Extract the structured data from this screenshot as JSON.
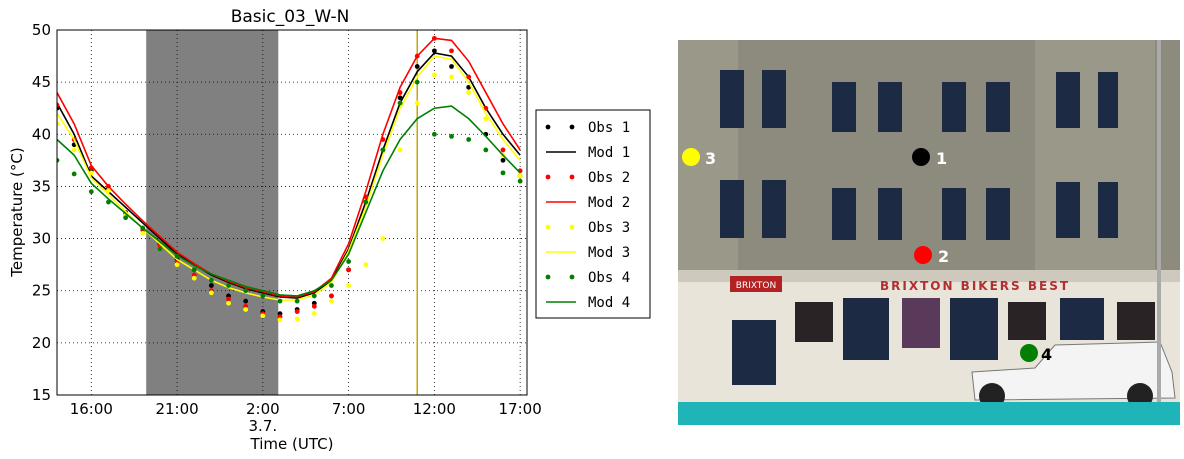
{
  "chart_data": {
    "type": "line",
    "title": "Basic_03_W-N",
    "x_label": "Time (UTC)",
    "y_label": "Temperature (°C)",
    "date_label": "3.7.",
    "xlim": [
      14,
      41.4
    ],
    "ylim": [
      15,
      50
    ],
    "xticks": [
      {
        "value": 16,
        "label": "16:00"
      },
      {
        "value": 21,
        "label": "21:00"
      },
      {
        "value": 26,
        "label": "2:00"
      },
      {
        "value": 31,
        "label": "7:00"
      },
      {
        "value": 36,
        "label": "12:00"
      },
      {
        "value": 41,
        "label": "17:00"
      }
    ],
    "yticks": [
      15,
      20,
      25,
      30,
      35,
      40,
      45,
      50
    ],
    "grid": true,
    "shaded_span": [
      19.2,
      26.9
    ],
    "shade_color": "#808080",
    "vline": 35,
    "vline_color": "#c8a800",
    "x": [
      14,
      15,
      16,
      17,
      18,
      19,
      20,
      21,
      22,
      23,
      24,
      25,
      26,
      27,
      28,
      29,
      30,
      31,
      32,
      33,
      34,
      35,
      36,
      37,
      38,
      39,
      40,
      41
    ],
    "series": [
      {
        "name": "Obs 1",
        "style": "markers",
        "color": "#000000",
        "values": [
          42.5,
          39,
          36.5,
          34.8,
          32.5,
          31,
          29.5,
          28,
          27,
          25.5,
          24.5,
          24,
          23,
          22.8,
          23.2,
          23.8,
          24.5,
          27,
          33.5,
          38.5,
          43.5,
          46.5,
          48,
          46.5,
          44.5,
          40,
          37.5,
          36
        ]
      },
      {
        "name": "Mod 1",
        "style": "line",
        "color": "#000000",
        "values": [
          43,
          40,
          36,
          34.5,
          33,
          31.5,
          30,
          28.5,
          27.5,
          26.5,
          25.8,
          25.2,
          24.8,
          24.4,
          24.3,
          24.8,
          26,
          29,
          33.5,
          38.5,
          43,
          46,
          47.8,
          47.5,
          45.5,
          42.5,
          40,
          38
        ]
      },
      {
        "name": "Obs 2",
        "style": "markers",
        "color": "#ff0000",
        "values": [
          42.8,
          39.5,
          36.8,
          35,
          32.3,
          30.8,
          29.3,
          27.8,
          26.5,
          25,
          24.2,
          23.5,
          22.8,
          22.5,
          23,
          23.5,
          24.5,
          27,
          34,
          39.5,
          44,
          47.5,
          49.2,
          48,
          45.5,
          42.5,
          38.5,
          36.5
        ]
      },
      {
        "name": "Mod 2",
        "style": "line",
        "color": "#ff0000",
        "values": [
          44,
          41,
          37,
          35,
          33.3,
          31.7,
          30.2,
          28.7,
          27.6,
          26.6,
          25.9,
          25.3,
          24.9,
          24.5,
          24.4,
          24.9,
          26.2,
          29.5,
          34.5,
          40,
          44.5,
          47.5,
          49.2,
          49,
          47,
          44,
          41,
          38.5
        ]
      },
      {
        "name": "Obs 3",
        "style": "markers",
        "color": "#ffff00",
        "values": [
          41,
          38.5,
          36.3,
          34.6,
          32.2,
          30.5,
          29,
          27.5,
          26.2,
          24.8,
          23.8,
          23.2,
          22.6,
          22.2,
          22.3,
          22.8,
          24,
          25.5,
          27.5,
          30,
          38.5,
          43,
          45.7,
          45.5,
          44,
          41.5,
          38,
          36
        ]
      },
      {
        "name": "Mod 3",
        "style": "line",
        "color": "#ffff00",
        "values": [
          42,
          39.5,
          35.8,
          34.2,
          32.6,
          31,
          29.5,
          28,
          27,
          26,
          25.3,
          24.8,
          24.4,
          24.1,
          24.1,
          24.6,
          25.8,
          28.8,
          33,
          38,
          42.5,
          45.5,
          47.5,
          47.2,
          45,
          42,
          39.5,
          37.5
        ]
      },
      {
        "name": "Obs 4",
        "style": "markers",
        "color": "#007f00",
        "values": [
          37.5,
          36.2,
          34.5,
          33.5,
          32,
          31,
          29,
          28.3,
          27,
          26,
          25.5,
          25,
          24.5,
          24,
          24,
          24.5,
          25.5,
          27.8,
          33.5,
          38.5,
          43,
          45,
          40,
          39.8,
          39.5,
          38.5,
          36.3,
          35.5
        ]
      },
      {
        "name": "Mod 4",
        "style": "line",
        "color": "#007f00",
        "values": [
          39.5,
          38,
          35.3,
          33.8,
          32.4,
          31,
          29.7,
          28.4,
          27.4,
          26.6,
          26,
          25.4,
          25,
          24.6,
          24.5,
          25,
          26,
          28.5,
          32.5,
          36.5,
          39.5,
          41.5,
          42.5,
          42.7,
          41.5,
          39.8,
          38,
          36.3
        ]
      }
    ]
  },
  "photo": {
    "signs": [
      "BRIXTON BIKERS BEST",
      "BRIXTON"
    ],
    "markers": [
      {
        "label": "1",
        "color": "#000000"
      },
      {
        "label": "2",
        "color": "#ff0000"
      },
      {
        "label": "3",
        "color": "#ffff00"
      },
      {
        "label": "4",
        "color": "#007f00"
      }
    ]
  }
}
